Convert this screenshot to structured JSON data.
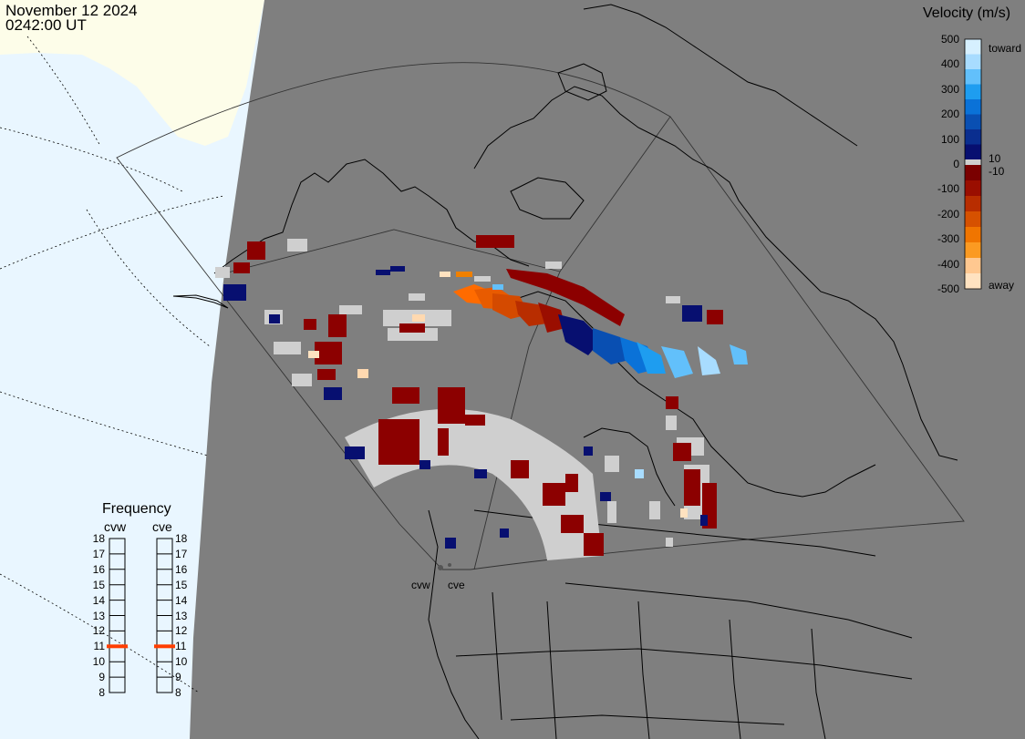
{
  "header": {
    "date": "November 12 2024",
    "time": "0242:00 UT"
  },
  "velocity_legend": {
    "title": "Velocity (m/s)",
    "ticks": [
      "500",
      "400",
      "300",
      "200",
      "100",
      "0",
      "-100",
      "-200",
      "-300",
      "-400",
      "-500"
    ],
    "toward_label": "toward",
    "away_label": "away",
    "plus_label": "10",
    "minus_label": "-10",
    "colors": [
      "#d6f0ff",
      "#a8dcff",
      "#62c0fb",
      "#1e9df0",
      "#0a72d8",
      "#094fb2",
      "#0a2e8f",
      "#070f70",
      "#7a0000",
      "#9a0e00",
      "#b82d00",
      "#d65100",
      "#f07500",
      "#fb9a22",
      "#ffc890",
      "#ffe2c0"
    ]
  },
  "frequency_panel": {
    "title": "Frequency",
    "radars": [
      {
        "name": "cvw",
        "value": 11
      },
      {
        "name": "cve",
        "value": 11
      }
    ],
    "ticks": [
      "18",
      "17",
      "16",
      "15",
      "14",
      "13",
      "12",
      "11",
      "10",
      "9",
      "8"
    ]
  },
  "radar_sites": [
    {
      "name": "cvw"
    },
    {
      "name": "cve"
    }
  ],
  "map_colors": {
    "land": "#7f7f7f",
    "ocean": "#e9f6ff",
    "night_land": "#fdfde9",
    "coast": "#000000",
    "ground_scatter": "#cfcfcf",
    "frequency_marker": "#ff3e00"
  }
}
